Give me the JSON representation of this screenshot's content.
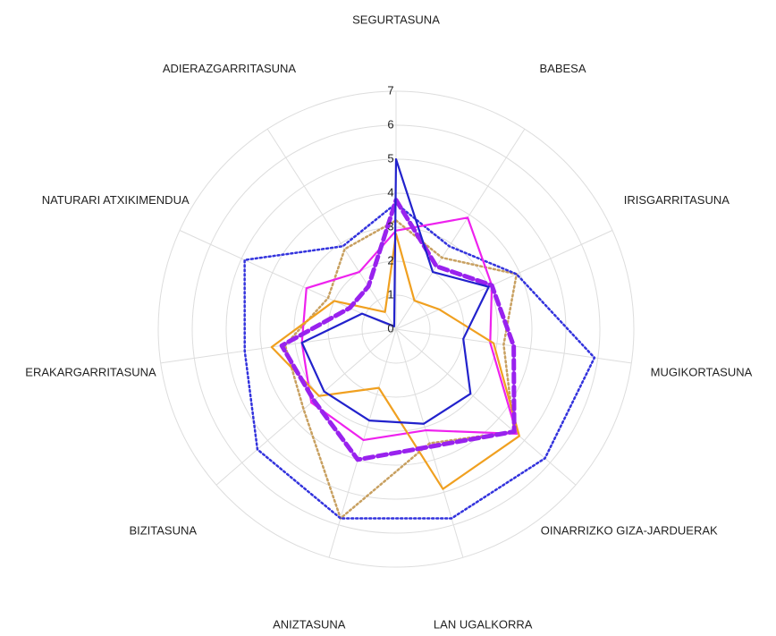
{
  "chart_data": {
    "type": "radar",
    "categories": [
      "SEGURTASUNA",
      "BABESA",
      "IRISGARRITASUNA",
      "MUGIKORTASUNA",
      "OINARRIZKO GIZA-JARDUERAK",
      "LAN UGALKORRA",
      "ANIZTASUNA",
      "BIZITASUNA",
      "ERAKARGARRITASUNA",
      "NATURARI ATXIKIMENDUA",
      "ADIERAZGARRITASUNA"
    ],
    "rlim": [
      0,
      7
    ],
    "rticks": [
      0,
      1,
      2,
      3,
      4,
      5,
      6,
      7
    ],
    "grid": true,
    "series": [
      {
        "color": "#c8a060",
        "dash": "dotted",
        "values": [
          3.2,
          2.5,
          3.9,
          3.2,
          4.6,
          3.5,
          5.8,
          3.6,
          3.3,
          2.2,
          2.8
        ]
      },
      {
        "color": "#3333dd",
        "dash": "dotted",
        "values": [
          3.7,
          2.9,
          3.9,
          5.9,
          5.8,
          5.8,
          5.8,
          5.4,
          4.5,
          4.9,
          2.9
        ]
      },
      {
        "color": "#ee22ee",
        "dash": "solid",
        "values": [
          2.9,
          3.9,
          3.1,
          2.8,
          4.7,
          3.1,
          3.4,
          3.3,
          2.8,
          2.9,
          2.0
        ]
      },
      {
        "color": "#f0a020",
        "dash": "solid",
        "values": [
          2.8,
          1.0,
          1.4,
          2.9,
          4.8,
          4.9,
          1.8,
          3.0,
          3.7,
          2.0,
          0.6
        ]
      },
      {
        "color": "#9922ee",
        "dash": "dashed",
        "values": [
          3.8,
          2.2,
          3.1,
          3.5,
          4.6,
          3.6,
          4.0,
          3.2,
          3.4,
          1.5,
          1.5
        ]
      },
      {
        "color": "#2222cc",
        "dash": "solid",
        "values": [
          5.0,
          2.0,
          3.0,
          2.0,
          2.9,
          2.9,
          2.8,
          2.8,
          2.8,
          1.1,
          0.1
        ]
      }
    ]
  }
}
